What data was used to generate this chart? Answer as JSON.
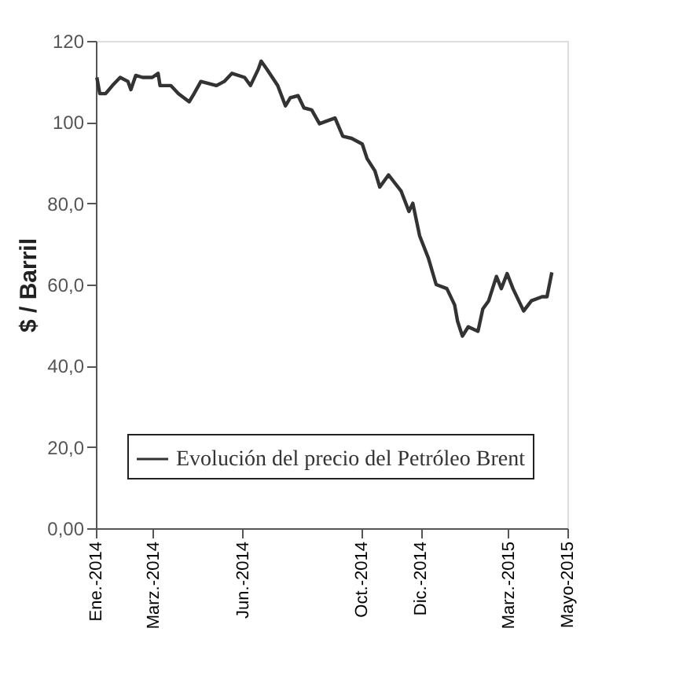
{
  "chart_data": {
    "type": "line",
    "ylabel": "$ / Barril",
    "legend": "bottom",
    "grid": false,
    "line_style": "solid",
    "marker": "none",
    "xlim": [
      "2014-01-01",
      "2015-05-01"
    ],
    "xticks": [
      {
        "value": "2014-01-01",
        "label": "Ene.-2014"
      },
      {
        "value": "2014-03-01",
        "label": "Marz.-2014"
      },
      {
        "value": "2014-06-01",
        "label": "Jun.-2014"
      },
      {
        "value": "2014-10-01",
        "label": "Oct.-2014"
      },
      {
        "value": "2014-12-01",
        "label": "Dic.-2014"
      },
      {
        "value": "2015-03-01",
        "label": "Marz.-2015"
      },
      {
        "value": "2015-05-01",
        "label": "Mayo-2015"
      }
    ],
    "ylim": [
      0,
      120
    ],
    "yticks": [
      {
        "value": 0,
        "label": "0,00"
      },
      {
        "value": 20,
        "label": "20,0"
      },
      {
        "value": 40,
        "label": "40,0"
      },
      {
        "value": 60,
        "label": "60,0"
      },
      {
        "value": 80,
        "label": "80,0"
      },
      100,
      120
    ],
    "series": [
      {
        "name": "Evolución del precio del Petróleo Brent",
        "color": "#333333",
        "x": [
          "2014-01-02",
          "2014-01-05",
          "2014-01-11",
          "2014-01-18",
          "2014-01-26",
          "2014-02-03",
          "2014-02-06",
          "2014-02-11",
          "2014-02-18",
          "2014-02-28",
          "2014-03-06",
          "2014-03-08",
          "2014-03-19",
          "2014-03-27",
          "2014-04-07",
          "2014-04-12",
          "2014-04-19",
          "2014-05-05",
          "2014-05-13",
          "2014-05-21",
          "2014-06-03",
          "2014-06-09",
          "2014-06-17",
          "2014-06-20",
          "2014-06-26",
          "2014-07-07",
          "2014-07-15",
          "2014-07-20",
          "2014-07-28",
          "2014-08-03",
          "2014-08-11",
          "2014-08-19",
          "2014-09-04",
          "2014-09-12",
          "2014-09-21",
          "2014-10-02",
          "2014-10-07",
          "2014-10-15",
          "2014-10-20",
          "2014-10-29",
          "2014-11-11",
          "2014-11-19",
          "2014-11-23",
          "2014-11-30",
          "2014-12-09",
          "2014-12-17",
          "2014-12-28",
          "2015-01-05",
          "2015-01-08",
          "2015-01-13",
          "2015-01-19",
          "2015-01-29",
          "2015-02-03",
          "2015-02-09",
          "2015-02-17",
          "2015-02-22",
          "2015-02-28",
          "2015-03-06",
          "2015-03-17",
          "2015-03-25",
          "2015-04-05",
          "2015-04-10",
          "2015-04-15"
        ],
        "values": [
          111,
          107,
          107,
          109,
          111,
          110,
          108,
          111.5,
          111,
          111,
          112,
          109,
          109,
          107,
          105,
          107,
          110,
          109,
          110,
          112,
          111,
          109,
          113,
          115,
          113,
          109,
          104,
          106,
          106.5,
          103.5,
          103,
          99.6,
          101,
          96.5,
          96,
          94.6,
          91,
          88,
          84,
          87,
          83,
          78,
          80,
          72,
          66.5,
          60,
          59,
          55,
          51,
          47.3,
          49.6,
          48.5,
          54,
          56,
          62,
          59,
          62.7,
          59,
          53.5,
          56,
          57,
          57,
          63
        ]
      }
    ]
  }
}
